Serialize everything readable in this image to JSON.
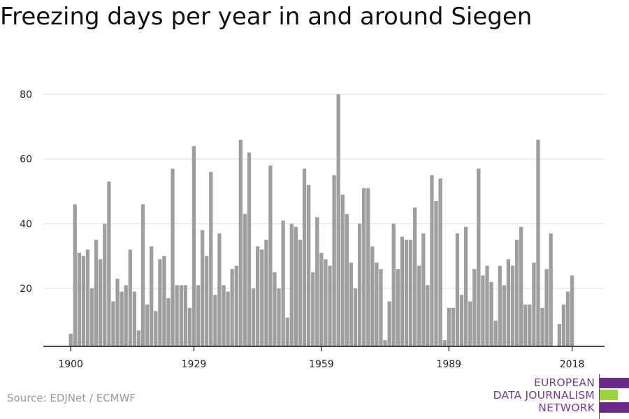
{
  "title": "Freezing days per year in and around Siegen",
  "source": "Source: EDJNet / ECMWF",
  "logo": {
    "line1": "EUROPEAN",
    "line2": "DATA JOURNALISM",
    "line3": "NETWORK",
    "colors": {
      "purple": "#6a2a8a",
      "green": "#9ad43a"
    }
  },
  "chart_data": {
    "type": "bar",
    "title": "Freezing days per year in and around Siegen",
    "xlabel": "",
    "ylabel": "",
    "x_start": 1900,
    "x_ticks": [
      1900,
      1929,
      1959,
      1989,
      2018
    ],
    "y_ticks": [
      20,
      40,
      60,
      80
    ],
    "ylim": [
      0,
      83
    ],
    "grid": true,
    "bar_color": "#9e9e9e",
    "values": [
      6,
      46,
      31,
      30,
      32,
      20,
      35,
      29,
      40,
      53,
      16,
      23,
      19,
      21,
      32,
      19,
      7,
      46,
      15,
      33,
      13,
      29,
      30,
      17,
      57,
      21,
      21,
      21,
      14,
      64,
      21,
      38,
      30,
      56,
      18,
      37,
      21,
      19,
      26,
      27,
      66,
      43,
      62,
      20,
      33,
      32,
      35,
      58,
      25,
      20,
      41,
      11,
      40,
      39,
      35,
      57,
      52,
      25,
      42,
      31,
      29,
      27,
      55,
      80,
      49,
      43,
      28,
      20,
      40,
      51,
      51,
      33,
      28,
      26,
      4,
      16,
      40,
      26,
      36,
      35,
      35,
      45,
      27,
      37,
      21,
      55,
      47,
      54,
      4,
      14,
      14,
      37,
      18,
      39,
      16,
      26,
      57,
      24,
      27,
      22,
      10,
      27,
      21,
      29,
      27,
      35,
      39,
      15,
      15,
      28,
      66,
      14,
      26,
      37,
      0,
      9,
      15,
      19,
      24
    ]
  }
}
